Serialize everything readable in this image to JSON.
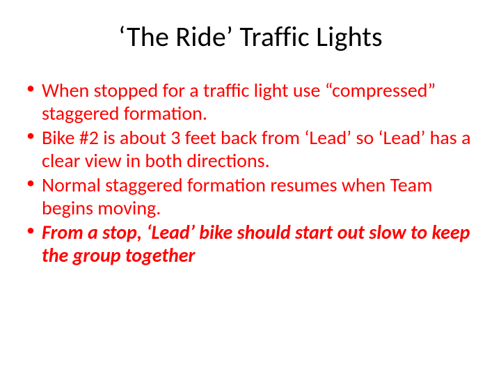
{
  "title": "‘The Ride’ Traffic Lights",
  "bullets": [
    {
      "text": "When stopped for a traffic light use “compressed” staggered formation.",
      "emphasis": false
    },
    {
      "text": "Bike #2 is about 3 feet back from ‘Lead’ so ‘Lead’ has a clear view in both directions.",
      "emphasis": false
    },
    {
      "text": "Normal staggered formation resumes when Team begins moving.",
      "emphasis": false
    },
    {
      "text": "From a stop, ‘Lead’ bike should start out slow to keep the group together",
      "emphasis": true
    }
  ],
  "colors": {
    "title": "#000000",
    "bullet_text": "#ff0000",
    "background": "#ffffff"
  },
  "typography": {
    "title_fontsize": 40,
    "bullet_fontsize": 28,
    "font_family": "Calibri"
  }
}
